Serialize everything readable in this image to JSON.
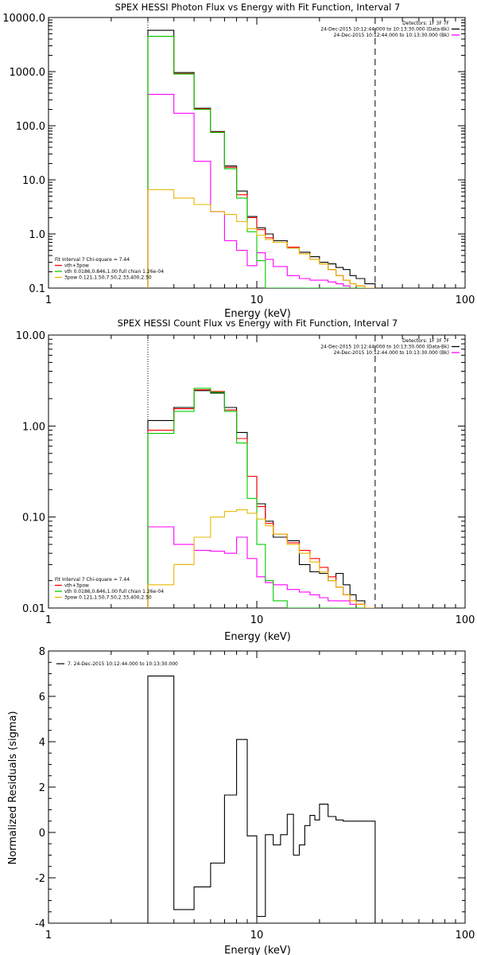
{
  "chart_data": [
    {
      "type": "line",
      "title": "SPEX HESSI Photon Flux vs Energy with Fit Function, Interval 7",
      "xlabel": "Energy (keV)",
      "ylabel": "",
      "xscale": "log",
      "yscale": "log",
      "xlim": [
        1,
        100
      ],
      "ylim": [
        0.1,
        10000
      ],
      "xticks": [
        "1",
        "10",
        "100"
      ],
      "yticks": [
        "0.1",
        "1.0",
        "10.0",
        "100.0",
        "1000.0",
        "10000.0"
      ],
      "grid": false,
      "legend_position": "bottom-left",
      "legend_title": "Fit Interval 7   Chi-square = 7.44",
      "info_text": [
        "Detectors: 1F 3F 7F",
        "24-Dec-2015 10:12:44.000 to 10:13:30.000 (Data-Bk)",
        "24-Dec-2015 10:12:44.000 to 10:13:30.000 (Bk)"
      ],
      "markers": {
        "dotted_x": 3.0,
        "dashed_x": 37.0
      },
      "bin_edges": [
        3,
        4,
        5,
        6,
        7,
        8,
        9,
        10,
        11,
        12,
        14,
        16,
        18,
        20,
        22,
        24,
        26,
        28,
        30,
        33,
        37
      ],
      "series": [
        {
          "name": "24-Dec-2015 10:12:44.000 to 10:13:30.000 (Data-Bk)",
          "color": "#000000",
          "values": [
            5800,
            960,
            210,
            78,
            18,
            6.2,
            2.1,
            1.3,
            1.0,
            0.75,
            0.55,
            0.46,
            0.38,
            0.3,
            0.28,
            0.24,
            0.22,
            0.17,
            0.15,
            0.12
          ]
        },
        {
          "name": "24-Dec-2015 10:12:44.000 to 10:13:30.000 (Bk)",
          "color": "#ff00ff",
          "values": [
            380,
            170,
            22,
            2.6,
            0.75,
            0.5,
            0.26,
            0.45,
            0.34,
            0.25,
            0.17,
            0.15,
            0.14,
            0.14,
            0.13,
            0.12,
            0.11,
            0.1,
            0.1,
            0.1
          ]
        },
        {
          "name": "vth+3pow",
          "color": "#ff0000",
          "values": [
            4500,
            920,
            205,
            76,
            17,
            5.3,
            2.0,
            1.2,
            0.85,
            0.7,
            0.57,
            0.43,
            0.34,
            0.28,
            0.22,
            0.17,
            0.14,
            0.12,
            0.11,
            0.1
          ]
        },
        {
          "name": "vth 0.0186,0.846,1.00  full chian 1.26e-04",
          "color": "#00cc00",
          "values": [
            4500,
            900,
            200,
            75,
            16,
            4.6,
            1.1,
            0.32,
            0.1,
            0.1,
            0.1,
            0.1,
            0.1,
            0.1,
            0.1,
            0.1,
            0.1,
            0.1,
            0.1,
            0.1
          ]
        },
        {
          "name": "3pow 0.121,1.50,7.50,2.33,400,2.50",
          "color": "#e6b800",
          "values": [
            6.6,
            4.6,
            3.5,
            2.6,
            2.3,
            1.7,
            1.25,
            0.95,
            0.79,
            0.7,
            0.55,
            0.43,
            0.34,
            0.28,
            0.22,
            0.17,
            0.14,
            0.12,
            0.11,
            0.1
          ]
        }
      ]
    },
    {
      "type": "line",
      "title": "SPEX HESSI Count Flux vs Energy with Fit Function, Interval 7",
      "xlabel": "Energy (keV)",
      "ylabel": "",
      "xscale": "log",
      "yscale": "log",
      "xlim": [
        1,
        100
      ],
      "ylim": [
        0.01,
        10
      ],
      "xticks": [
        "1",
        "10",
        "100"
      ],
      "yticks": [
        "0.01",
        "0.10",
        "1.00",
        "10.00"
      ],
      "grid": false,
      "legend_position": "bottom-left",
      "legend_title": "Fit Interval 7   Chi-square = 7.44",
      "info_text": [
        "Detectors: 1F 3F 7F",
        "24-Dec-2015 10:12:44.000 to 10:13:30.000 (Data-Bk)",
        "24-Dec-2015 10:12:44.000 to 10:13:30.000 (Bk)"
      ],
      "markers": {
        "dotted_x": 3.0,
        "dashed_x": 37.0
      },
      "bin_edges": [
        3,
        4,
        5,
        6,
        7,
        8,
        9,
        10,
        11,
        12,
        14,
        16,
        18,
        20,
        22,
        24,
        26,
        28,
        30,
        33,
        37
      ],
      "series": [
        {
          "name": "24-Dec-2015 10:12:44.000 to 10:13:30.000 (Data-Bk)",
          "color": "#000000",
          "values": [
            1.15,
            1.6,
            2.45,
            2.3,
            1.6,
            0.85,
            0.28,
            0.14,
            0.09,
            0.06,
            0.055,
            0.03,
            0.025,
            0.024,
            0.02,
            0.024,
            0.018,
            0.014,
            0.012,
            0.01
          ]
        },
        {
          "name": "24-Dec-2015 10:12:44.000 to 10:13:30.000 (Bk)",
          "color": "#ff00ff",
          "values": [
            0.078,
            0.05,
            0.043,
            0.042,
            0.04,
            0.06,
            0.035,
            0.022,
            0.019,
            0.018,
            0.016,
            0.015,
            0.014,
            0.013,
            0.012,
            0.012,
            0.012,
            0.011,
            0.011,
            0.01
          ]
        },
        {
          "name": "vth+3pow",
          "color": "#ff0000",
          "values": [
            0.9,
            1.55,
            2.5,
            2.4,
            1.5,
            0.73,
            0.28,
            0.13,
            0.085,
            0.065,
            0.052,
            0.043,
            0.035,
            0.028,
            0.022,
            0.017,
            0.014,
            0.012,
            0.011,
            0.01
          ]
        },
        {
          "name": "vth 0.0186,0.846,1.00  full chian 1.26e-04",
          "color": "#00cc00",
          "values": [
            0.83,
            1.45,
            2.6,
            2.35,
            1.45,
            0.65,
            0.16,
            0.05,
            0.02,
            0.012,
            0.01,
            0.01,
            0.01,
            0.01,
            0.01,
            0.01,
            0.01,
            0.01,
            0.01,
            0.01
          ]
        },
        {
          "name": "3pow 0.121,1.50,7.50,2.33,400,2.50",
          "color": "#e6b800",
          "values": [
            0.018,
            0.03,
            0.06,
            0.1,
            0.115,
            0.12,
            0.11,
            0.095,
            0.08,
            0.065,
            0.05,
            0.04,
            0.032,
            0.025,
            0.02,
            0.017,
            0.014,
            0.012,
            0.011,
            0.01
          ]
        }
      ]
    },
    {
      "type": "line",
      "title": "",
      "xlabel": "Energy (keV)",
      "ylabel": "Normalized Residuals (sigma)",
      "xscale": "log",
      "yscale": "linear",
      "xlim": [
        1,
        100
      ],
      "ylim": [
        -4,
        8
      ],
      "xticks": [
        "1",
        "10",
        "100"
      ],
      "yticks": [
        "-4",
        "-2",
        "0",
        "2",
        "4",
        "6",
        "8"
      ],
      "grid": false,
      "legend_position": "top-left",
      "bin_edges": [
        3,
        4,
        5,
        6,
        7,
        8,
        9,
        10,
        11,
        12,
        13,
        14,
        15,
        16,
        17,
        18,
        19,
        20,
        22,
        24,
        26,
        28,
        30,
        33,
        37
      ],
      "series": [
        {
          "name": "7. 24-Dec-2015 10:12:44.000 to 10:13:30.000",
          "color": "#000000",
          "values": [
            6.9,
            -3.4,
            -2.4,
            -1.35,
            1.65,
            4.1,
            -0.15,
            -3.7,
            -0.1,
            -0.55,
            -0.1,
            0.8,
            -1.0,
            -0.55,
            0.3,
            0.75,
            0.55,
            1.25,
            0.7,
            0.55,
            0.5,
            0.5,
            0.5,
            0.5
          ]
        }
      ]
    }
  ]
}
